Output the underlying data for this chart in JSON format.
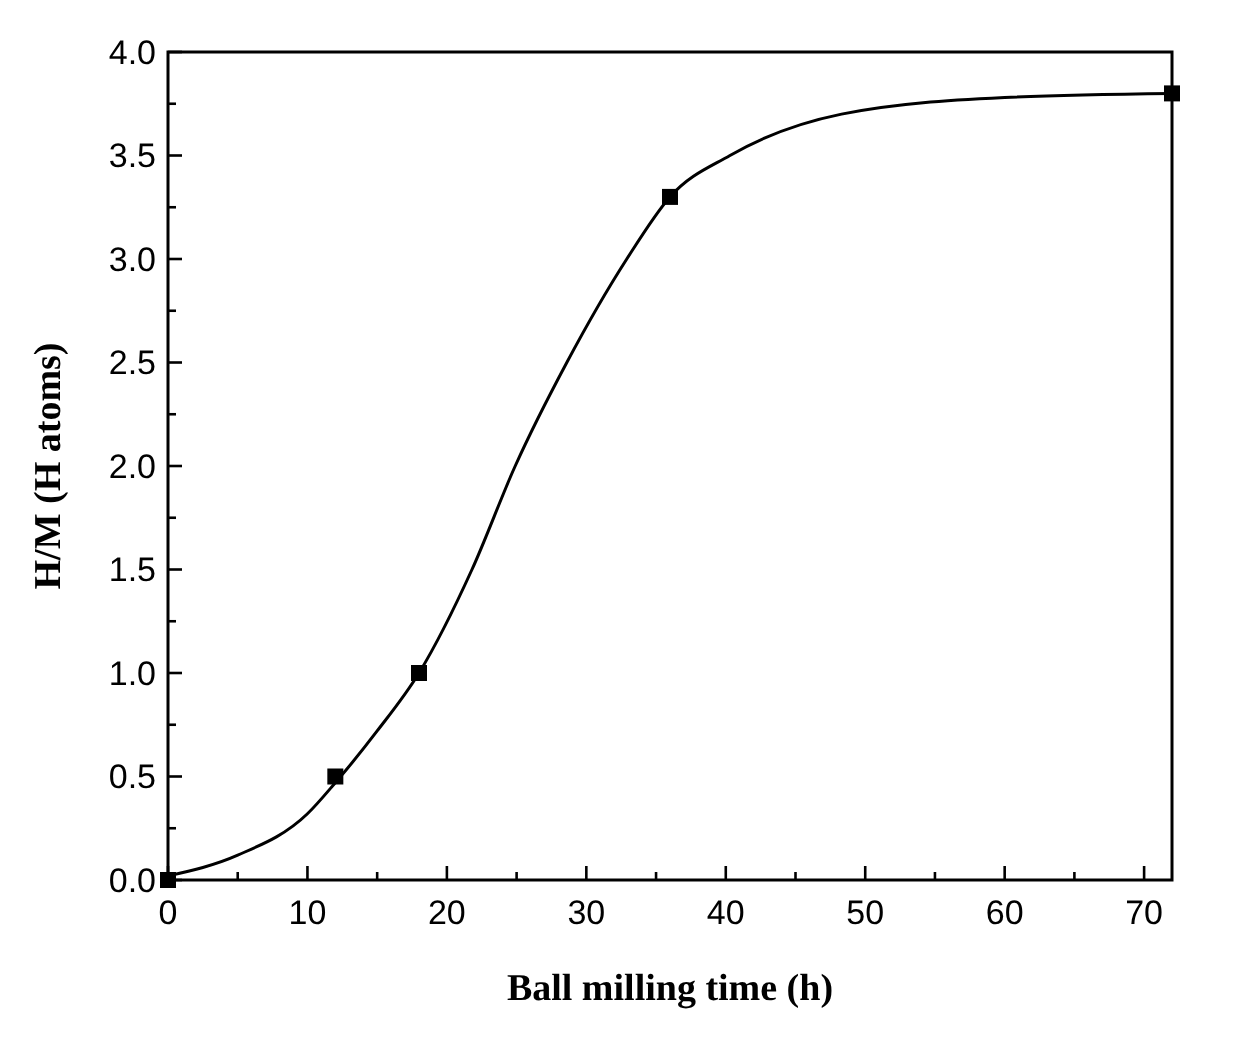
{
  "chart_data": {
    "type": "scatter",
    "xlabel": "Ball milling time (h)",
    "ylabel": "H/M (H atoms)",
    "xlim": [
      0,
      72
    ],
    "ylim": [
      0,
      4.0
    ],
    "xticks": [
      0,
      {
        "value": 5,
        "label": null
      },
      10,
      {
        "value": 15,
        "label": null
      },
      20,
      {
        "value": 25,
        "label": null
      },
      30,
      {
        "value": 35,
        "label": null
      },
      40,
      {
        "value": 45,
        "label": null
      },
      50,
      {
        "value": 55,
        "label": null
      },
      60,
      {
        "value": 65,
        "label": null
      },
      70
    ],
    "yticks": [
      {
        "value": 0,
        "label": "0.0"
      },
      {
        "value": 0.25,
        "label": null
      },
      0.5,
      {
        "value": 0.75,
        "label": null
      },
      {
        "value": 1,
        "label": "1.0"
      },
      {
        "value": 1.25,
        "label": null
      },
      1.5,
      {
        "value": 1.75,
        "label": null
      },
      {
        "value": 2,
        "label": "2.0"
      },
      {
        "value": 2.25,
        "label": null
      },
      2.5,
      {
        "value": 2.75,
        "label": null
      },
      {
        "value": 3,
        "label": "3.0"
      },
      {
        "value": 3.25,
        "label": null
      },
      3.5,
      {
        "value": 3.75,
        "label": null
      },
      {
        "value": 4,
        "label": "4.0"
      }
    ],
    "grid": false,
    "series": [
      {
        "marker": "square",
        "color": "#000000",
        "x": [
          0,
          12,
          18,
          36,
          72
        ],
        "values": [
          0,
          0.5,
          1.0,
          3.3,
          3.8
        ]
      },
      {
        "type": "line",
        "color": "#000000",
        "line_style": "solid",
        "x": [
          0,
          5,
          10,
          12,
          15,
          18,
          21.8,
          24.9,
          28.6,
          32.9,
          36,
          40.3,
          48.3,
          60,
          72
        ],
        "values": [
          0.02,
          0.12,
          0.32,
          0.47,
          0.72,
          1.0,
          1.5,
          2.0,
          2.5,
          3.0,
          3.3,
          3.5,
          3.7,
          3.78,
          3.8
        ]
      }
    ]
  }
}
